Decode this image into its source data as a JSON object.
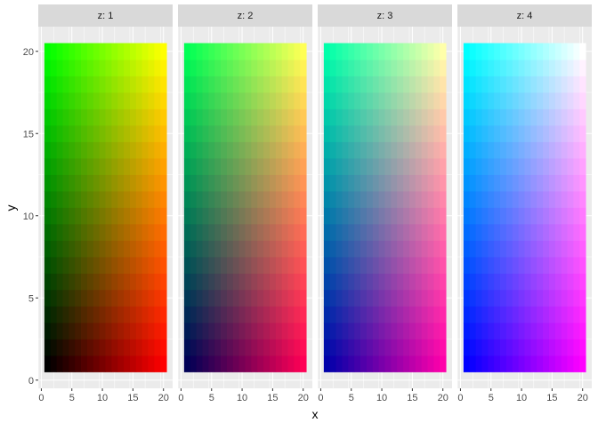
{
  "chart_data": {
    "type": "heatmap",
    "xlabel": "x",
    "ylabel": "y",
    "x": [
      1,
      2,
      3,
      4,
      5,
      6,
      7,
      8,
      9,
      10,
      11,
      12,
      13,
      14,
      15,
      16,
      17,
      18,
      19,
      20
    ],
    "y": [
      1,
      2,
      3,
      4,
      5,
      6,
      7,
      8,
      9,
      10,
      11,
      12,
      13,
      14,
      15,
      16,
      17,
      18,
      19,
      20
    ],
    "facets": [
      {
        "label": "z: 1",
        "z": 1
      },
      {
        "label": "z: 2",
        "z": 2
      },
      {
        "label": "z: 3",
        "z": 3
      },
      {
        "label": "z: 4",
        "z": 4
      }
    ],
    "fill": "rgb(red = (x-1)/19, green = (y-1)/19, blue = (z-1)/3)",
    "xlim": [
      -0.5,
      21.5
    ],
    "ylim": [
      -0.5,
      21.5
    ],
    "x_ticks": [
      0,
      5,
      10,
      15,
      20
    ],
    "y_ticks": [
      0,
      5,
      10,
      15,
      20
    ],
    "grid": true,
    "panel_background": "#EBEBEB",
    "strip_background": "#D9D9D9"
  }
}
